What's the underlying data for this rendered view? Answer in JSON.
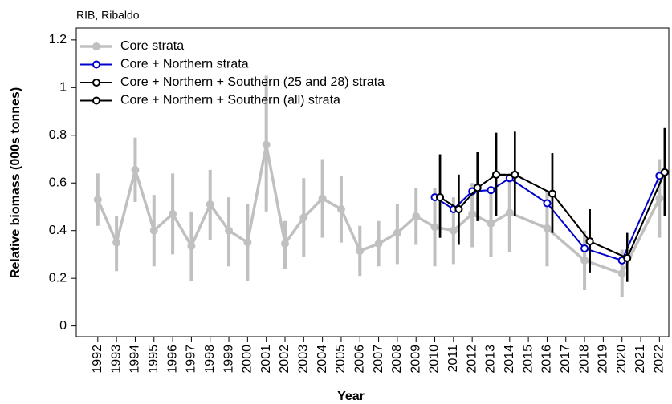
{
  "chart_data": {
    "type": "line",
    "title": "RIB, Ribaldo",
    "x_label": "Year",
    "y_label": "Relative biomass (000s tonnes)",
    "xlim": [
      1990.85,
      2022.5
    ],
    "xticks": [
      1992,
      1993,
      1994,
      1995,
      1996,
      1997,
      1998,
      1999,
      2000,
      2001,
      2002,
      2003,
      2004,
      2005,
      2006,
      2007,
      2008,
      2009,
      2010,
      2011,
      2012,
      2013,
      2014,
      2015,
      2016,
      2017,
      2018,
      2019,
      2020,
      2021,
      2022
    ],
    "ylim": [
      -0.045,
      1.25
    ],
    "yticks": [
      0,
      0.2,
      0.4,
      0.6,
      0.8,
      1,
      1.2
    ],
    "legend": "top-left",
    "series": [
      {
        "name": "Core strata",
        "color": "#c0c0c0",
        "x": [
          1992,
          1993,
          1994,
          1995,
          1996,
          1997,
          1998,
          1999,
          2000,
          2001,
          2002,
          2003,
          2004,
          2005,
          2006,
          2007,
          2008,
          2009,
          2010,
          2011,
          2012,
          2013,
          2014,
          2016,
          2018,
          2020,
          2022
        ],
        "values": [
          0.53,
          0.35,
          0.655,
          0.4,
          0.47,
          0.335,
          0.51,
          0.4,
          0.35,
          0.76,
          0.345,
          0.455,
          0.535,
          0.49,
          0.315,
          0.345,
          0.39,
          0.46,
          0.415,
          0.4,
          0.47,
          0.43,
          0.475,
          0.41,
          0.275,
          0.22,
          0.535
        ],
        "lower": [
          0.42,
          0.23,
          0.52,
          0.25,
          0.3,
          0.19,
          0.36,
          0.25,
          0.19,
          0.48,
          0.24,
          0.29,
          0.37,
          0.35,
          0.21,
          0.25,
          0.26,
          0.34,
          0.25,
          0.26,
          0.33,
          0.29,
          0.31,
          0.25,
          0.15,
          0.12,
          0.37
        ],
        "upper": [
          0.64,
          0.46,
          0.79,
          0.55,
          0.64,
          0.48,
          0.655,
          0.54,
          0.51,
          1.05,
          0.44,
          0.62,
          0.7,
          0.63,
          0.42,
          0.44,
          0.51,
          0.58,
          0.58,
          0.54,
          0.6,
          0.57,
          0.64,
          0.57,
          0.4,
          0.32,
          0.7
        ]
      },
      {
        "name": "Core + Northern strata",
        "color": "#0000cc",
        "x": [
          2010,
          2011,
          2012,
          2013,
          2014,
          2016,
          2018,
          2020,
          2022
        ],
        "values": [
          0.54,
          0.49,
          0.565,
          0.57,
          0.62,
          0.515,
          0.325,
          0.275,
          0.63
        ]
      },
      {
        "name": "Core + Northern + Southern (25 and 28) strata",
        "color": "#000000",
        "dashed": true,
        "x": [
          2010,
          2011,
          2012,
          2013,
          2014,
          2016,
          2018,
          2020,
          2022
        ],
        "values": [
          0.54,
          0.49,
          0.58,
          0.635,
          0.635,
          0.555,
          0.355,
          0.285,
          0.645
        ],
        "lower": [
          0.37,
          0.34,
          0.44,
          0.46,
          0.46,
          0.39,
          0.225,
          0.185,
          0.46
        ],
        "upper": [
          0.72,
          0.635,
          0.73,
          0.81,
          0.815,
          0.725,
          0.49,
          0.39,
          0.83
        ]
      },
      {
        "name": "Core + Northern + Southern (all) strata",
        "color": "#000000",
        "x": [
          2010,
          2011,
          2012,
          2013,
          2014,
          2016,
          2018,
          2020,
          2022
        ],
        "values": [
          0.54,
          0.49,
          0.58,
          0.635,
          0.635,
          0.555,
          0.355,
          0.285,
          0.645
        ],
        "lower": [
          0.37,
          0.34,
          0.44,
          0.46,
          0.46,
          0.39,
          0.225,
          0.185,
          0.46
        ],
        "upper": [
          0.72,
          0.635,
          0.73,
          0.81,
          0.815,
          0.725,
          0.49,
          0.39,
          0.83
        ]
      }
    ]
  }
}
